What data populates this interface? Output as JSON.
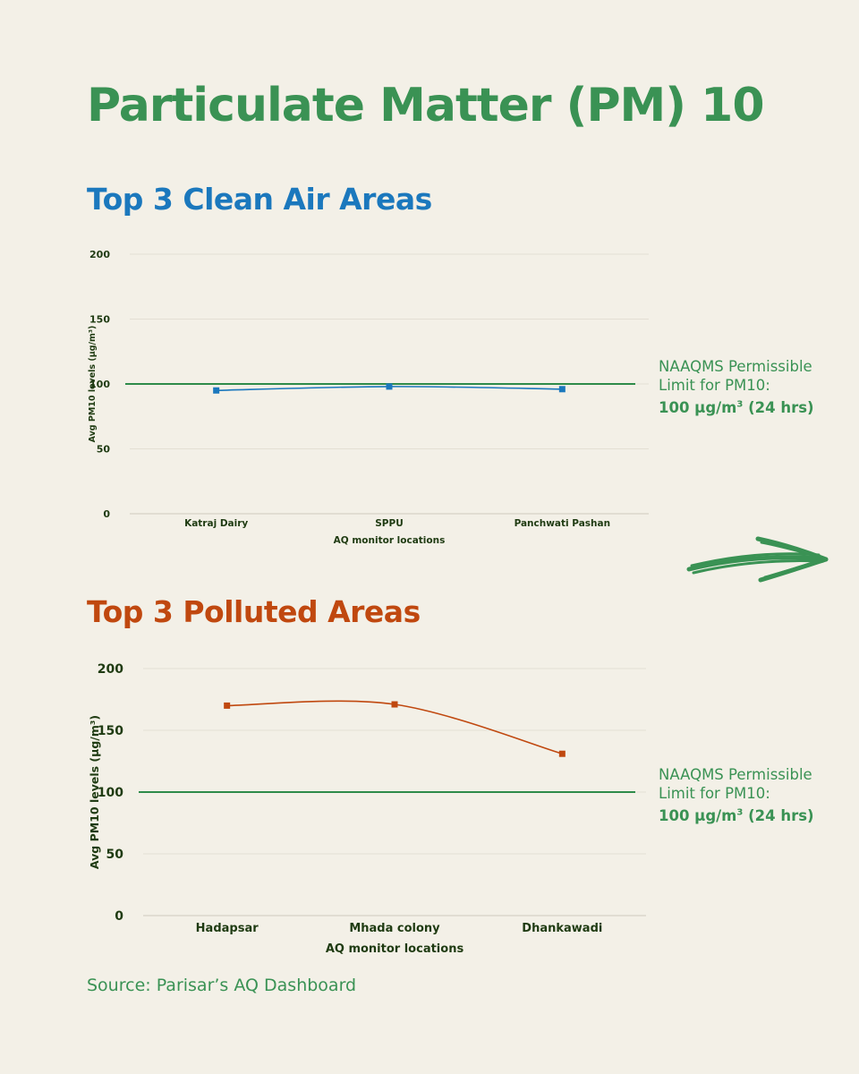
{
  "title": "Particulate Matter (PM) 10",
  "colors": {
    "title": "#3a9254",
    "clean": "#1b78bd",
    "polluted": "#c0480f",
    "limit_line": "#2e8b4a",
    "axis_text": "#1f3b12",
    "background": "#f3f0e7"
  },
  "limit_note": {
    "line1": "NAAQMS Permissible",
    "line2": "Limit for PM10:",
    "value": "100 µg/m",
    "sup": "3",
    "period": " (24 hrs)"
  },
  "source": "Source: Parisar’s AQ Dashboard",
  "arrow_icon": "hand-drawn-arrow-right-icon",
  "chart_data": [
    {
      "type": "line",
      "title": "Top 3 Clean Air Areas",
      "categories": [
        "Katraj Dairy",
        "SPPU",
        "Panchwati Pashan"
      ],
      "values": [
        95,
        98,
        96
      ],
      "xlabel": "AQ monitor locations",
      "ylabel": "Avg PM10 levels (µg/m³)",
      "ylim": [
        0,
        200
      ],
      "yticks": [
        0,
        50,
        100,
        150,
        200
      ],
      "reference_line": 100,
      "color": "#1b78bd",
      "marker": "square",
      "grid": true
    },
    {
      "type": "line",
      "title": "Top 3 Polluted Areas",
      "categories": [
        "Hadapsar",
        "Mhada colony",
        "Dhankawadi"
      ],
      "values": [
        170,
        171,
        131
      ],
      "xlabel": "AQ monitor locations",
      "ylabel": "Avg PM10 levels (µg/m³)",
      "ylim": [
        0,
        200
      ],
      "yticks": [
        0,
        50,
        100,
        150,
        200
      ],
      "reference_line": 100,
      "color": "#c0480f",
      "marker": "square",
      "grid": true
    }
  ]
}
